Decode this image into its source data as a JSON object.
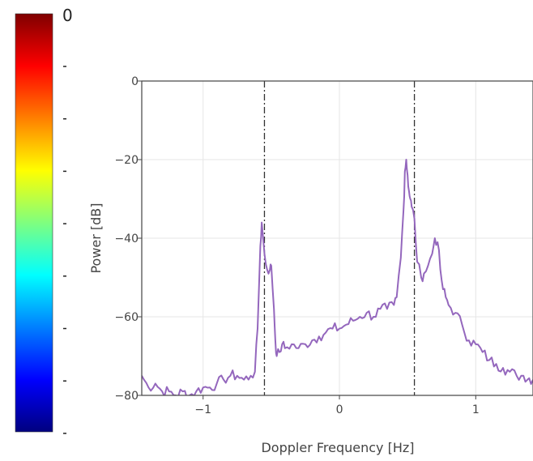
{
  "chart_data": {
    "type": "line",
    "xlabel": "Doppler Frequency [Hz]",
    "ylabel": "Power [dB]",
    "xlim": [
      -1.45,
      1.42
    ],
    "ylim": [
      -80,
      0
    ],
    "x_ticks": [
      -1,
      0,
      1
    ],
    "x_tick_labels": [
      "−1",
      "0",
      "1"
    ],
    "y_ticks": [
      0,
      -20,
      -40,
      -60,
      -80
    ],
    "y_tick_labels": [
      "0",
      "−20",
      "−40",
      "−60",
      "−80"
    ],
    "grid": true,
    "vertical_lines": [
      -0.55,
      0.55
    ],
    "series_color": "#9467bd",
    "series": [
      {
        "x": [
          -1.45,
          -1.4,
          -1.35,
          -1.3,
          -1.25,
          -1.2,
          -1.15,
          -1.1,
          -1.05,
          -1.0,
          -0.95,
          -0.9,
          -0.85,
          -0.8,
          -0.75,
          -0.7,
          -0.65,
          -0.62,
          -0.6,
          -0.58,
          -0.57,
          -0.55,
          -0.53,
          -0.51,
          -0.5,
          -0.48,
          -0.47,
          -0.46,
          -0.44,
          -0.42,
          -0.4,
          -0.35,
          -0.3,
          -0.25,
          -0.2,
          -0.15,
          -0.1,
          -0.05,
          0.0,
          0.05,
          0.1,
          0.15,
          0.2,
          0.25,
          0.3,
          0.35,
          0.4,
          0.42,
          0.45,
          0.47,
          0.48,
          0.49,
          0.5,
          0.51,
          0.52,
          0.53,
          0.55,
          0.57,
          0.6,
          0.62,
          0.65,
          0.68,
          0.7,
          0.72,
          0.74,
          0.76,
          0.78,
          0.8,
          0.85,
          0.9,
          0.95,
          1.0,
          1.05,
          1.1,
          1.15,
          1.2,
          1.25,
          1.3,
          1.35,
          1.42
        ],
        "y": [
          -75,
          -78,
          -77,
          -79,
          -79,
          -80,
          -79,
          -80,
          -79,
          -78,
          -78,
          -77,
          -76,
          -75,
          -75,
          -76,
          -75,
          -74,
          -63,
          -42,
          -36,
          -44,
          -48,
          -48,
          -47,
          -58,
          -66,
          -70,
          -69,
          -67,
          -68,
          -67,
          -68,
          -67,
          -66,
          -65,
          -64,
          -63,
          -63,
          -62,
          -61,
          -60,
          -59,
          -60,
          -58,
          -58,
          -57,
          -55,
          -45,
          -33,
          -23,
          -20,
          -24,
          -28,
          -30,
          -32,
          -35,
          -46,
          -50,
          -49,
          -47,
          -44,
          -40,
          -41,
          -48,
          -53,
          -55,
          -57,
          -59,
          -62,
          -66,
          -67,
          -69,
          -71,
          -72,
          -73,
          -74,
          -75,
          -75,
          -76
        ]
      }
    ]
  },
  "colorbar": {
    "top_label": "0",
    "stops": [
      "#00007f",
      "#0000ff",
      "#007fff",
      "#00ffff",
      "#7fff7f",
      "#ffff00",
      "#ff7f00",
      "#ff0000",
      "#7f0000"
    ]
  }
}
